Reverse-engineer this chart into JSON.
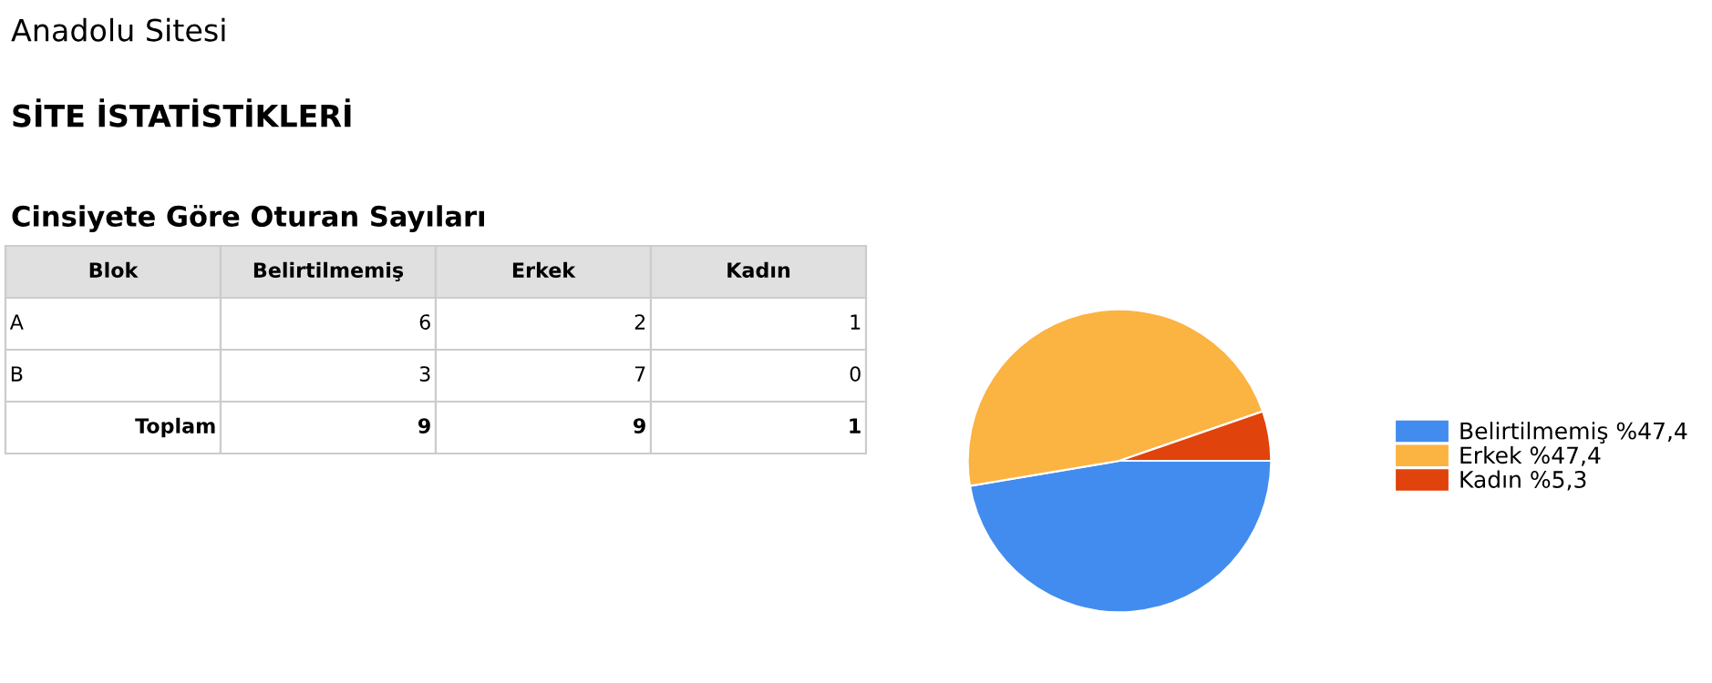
{
  "chart_data": [
    {
      "type": "other",
      "title": "Cinsiyete Göre Oturan Sayıları",
      "annotations": [
        "Anadolu Sitesi",
        "SİTE İSTATİSTİKLERİ"
      ],
      "ylabel": "Blok",
      "categories": [
        "Belirtilmemiş",
        "Erkek",
        "Kadın"
      ],
      "series": [
        {
          "name": "A",
          "values": [
            6,
            2,
            1
          ]
        },
        {
          "name": "B",
          "values": [
            3,
            7,
            0
          ]
        },
        {
          "name": "Toplam",
          "values": [
            9,
            9,
            1
          ]
        }
      ],
      "data_labels": true
    },
    {
      "type": "pie",
      "categories": [
        "Belirtilmemiş %47,4",
        "Erkek %47,4",
        "Kadın %5,3"
      ],
      "values": [
        47.4,
        47.4,
        5.3
      ],
      "colors": [
        "#428cef",
        "#fbb341",
        "#e0430c"
      ],
      "legend": "right"
    }
  ]
}
